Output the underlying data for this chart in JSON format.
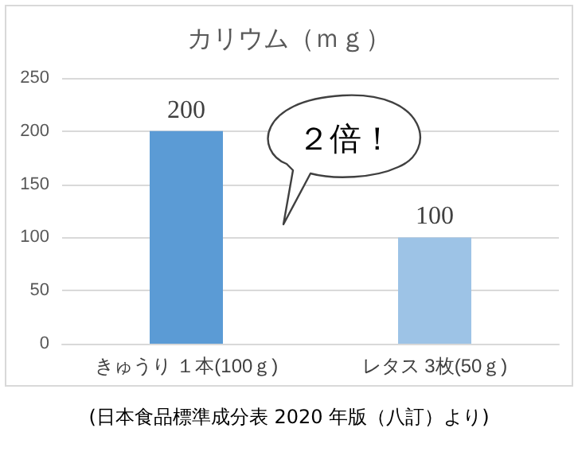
{
  "chart_data": {
    "type": "bar",
    "title": "カリウム（ｍｇ）",
    "categories": [
      "きゅうり １本(100ｇ)",
      "レタス 3枚(50ｇ)"
    ],
    "values": [
      200,
      100
    ],
    "colors": [
      "#5b9bd5",
      "#9dc3e6"
    ],
    "ylim": [
      0,
      250
    ],
    "yticks": [
      0,
      50,
      100,
      150,
      200,
      250
    ],
    "grid": "y",
    "data_labels": true,
    "annotations": [
      "２倍！",
      "(日本食品標準成分表 2020 年版（八訂）より)"
    ]
  }
}
